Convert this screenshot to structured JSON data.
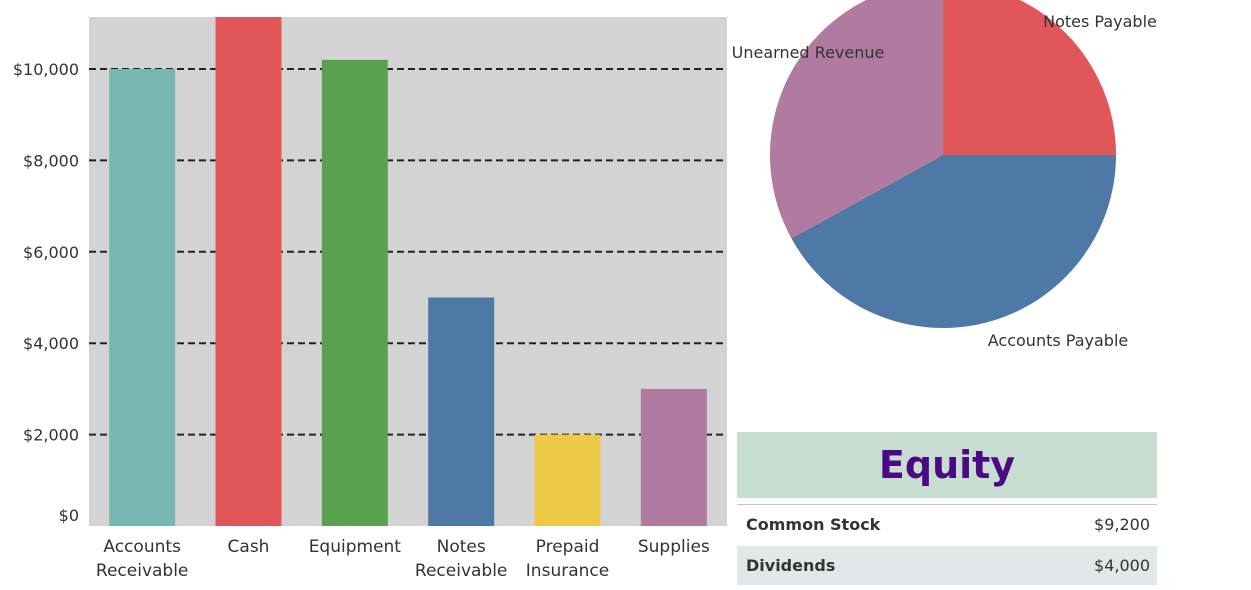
{
  "chart_data": [
    {
      "type": "bar",
      "categories": [
        [
          "Accounts",
          "Receivable"
        ],
        [
          "Cash"
        ],
        [
          "Equipment"
        ],
        [
          "Notes",
          "Receivable"
        ],
        [
          "Prepaid",
          "Insurance"
        ],
        [
          "Supplies"
        ]
      ],
      "values": [
        10000,
        11200,
        10200,
        5000,
        2000,
        3000
      ],
      "colors": [
        "#76b7b2",
        "#e15759",
        "#59a14f",
        "#4e79a7",
        "#edc948",
        "#b07aa1"
      ],
      "yticks": [
        "$0",
        "$2,000",
        "$4,000",
        "$6,000",
        "$8,000",
        "$10,000"
      ],
      "ytick_values": [
        0,
        2000,
        4000,
        6000,
        8000,
        10000
      ],
      "ylim": [
        0,
        11000
      ],
      "grid": "dashed",
      "background": "#d3d3d3"
    },
    {
      "type": "pie",
      "slices": [
        {
          "label": "Notes Payable",
          "value": 25,
          "color": "#e15759"
        },
        {
          "label": "Accounts Payable",
          "value": 42,
          "color": "#4e79a7"
        },
        {
          "label": "Unearned Revenue",
          "value": 33,
          "color": "#b07aa1"
        }
      ]
    }
  ],
  "equity": {
    "title": "Equity",
    "rows": [
      {
        "name": "Common Stock",
        "value": "$9,200"
      },
      {
        "name": "Dividends",
        "value": "$4,000"
      }
    ]
  }
}
